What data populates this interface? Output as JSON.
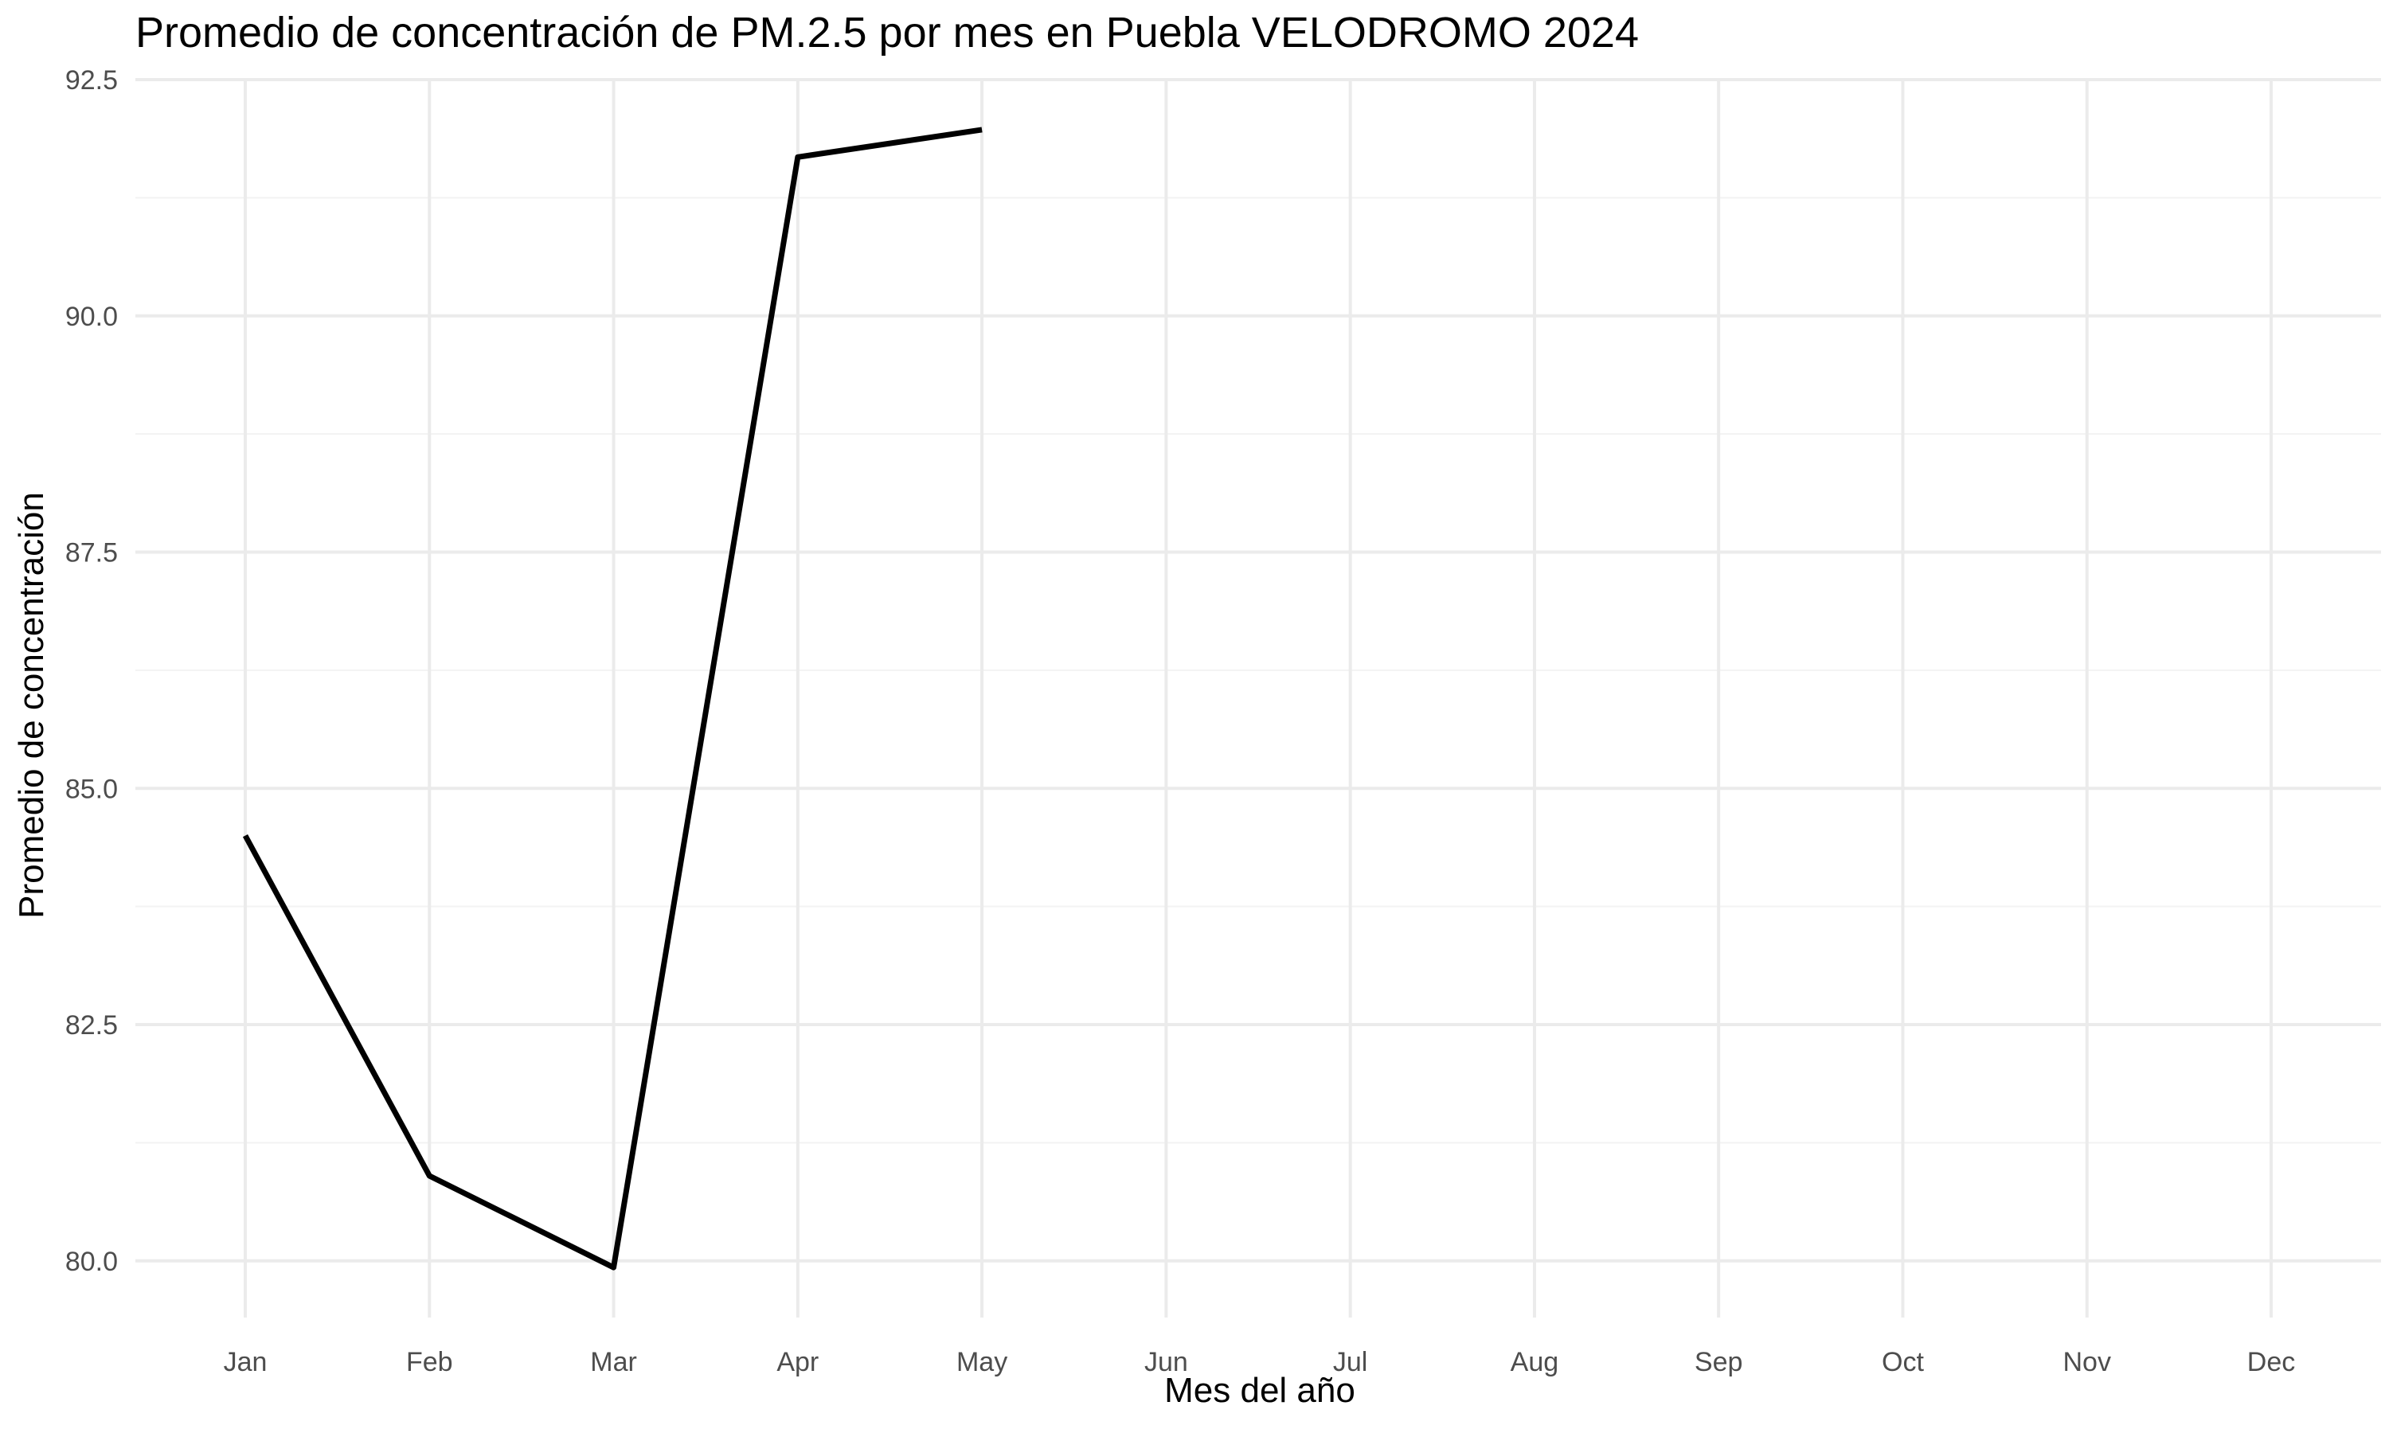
{
  "chart_data": {
    "type": "line",
    "title": "Promedio de concentración de PM.2.5 por mes en Puebla VELODROMO 2024",
    "xlabel": "Mes del año",
    "ylabel": "Promedio de concentración",
    "categories": [
      "Jan",
      "Feb",
      "Mar",
      "Apr",
      "May",
      "Jun",
      "Jul",
      "Aug",
      "Sep",
      "Oct",
      "Nov",
      "Dec"
    ],
    "series": [
      {
        "values": [
          84.5,
          80.9,
          79.93,
          91.68,
          91.97,
          null,
          null,
          null,
          null,
          null,
          null,
          null
        ],
        "color": "#000000"
      }
    ],
    "ylim": [
      79.4,
      92.5
    ],
    "yticks": [
      80.0,
      82.5,
      85.0,
      87.5,
      90.0,
      92.5
    ],
    "ytick_labels": [
      "80.0",
      "82.5",
      "85.0",
      "87.5",
      "90.0",
      "92.5"
    ],
    "grid": true,
    "legend": "none",
    "colors": {
      "major_grid": "#ebebeb",
      "minor_grid": "#f3f3f3",
      "line": "#000000",
      "tick_text": "#4d4d4d"
    }
  }
}
